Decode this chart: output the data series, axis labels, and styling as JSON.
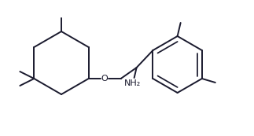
{
  "bg_color": "#ffffff",
  "line_color": "#1a1a2e",
  "line_width": 1.4,
  "font_size_label": 8.0
}
